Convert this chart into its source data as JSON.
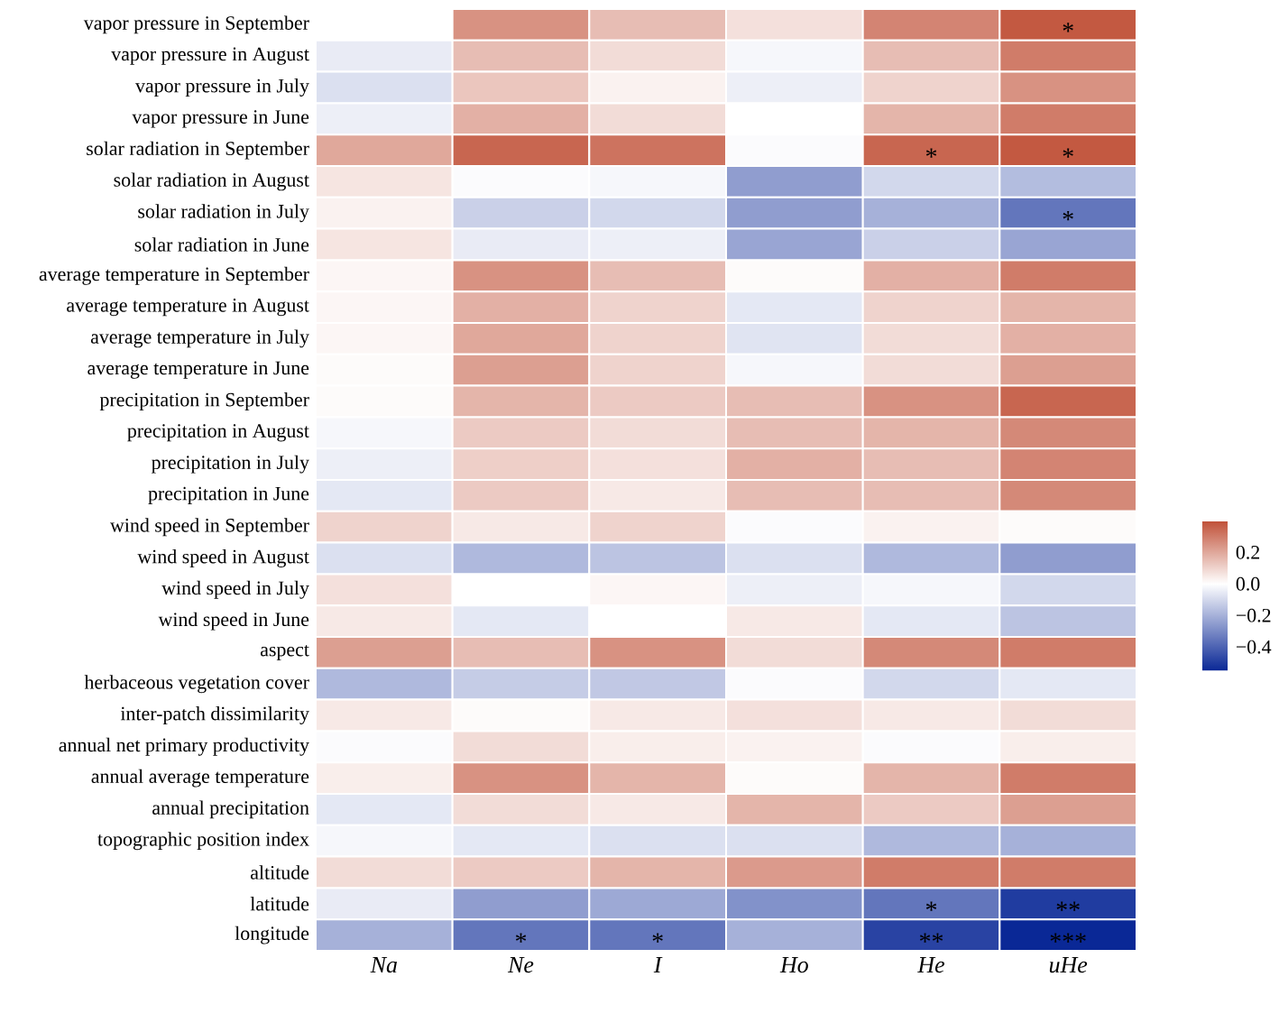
{
  "chart_data": {
    "type": "heatmap",
    "categories": [
      "Na",
      "Ne",
      "I",
      "Ho",
      "He",
      "uHe"
    ],
    "y_categories": [
      "vapor pressure in September",
      "vapor pressure in August",
      "vapor pressure in July",
      "vapor pressure in June",
      "solar radiation in September",
      "solar radiation in August",
      "solar radiation in July",
      "solar radiation in June",
      "average temperature in September",
      "average temperature in August",
      "average temperature in July",
      "average temperature in June",
      "precipitation in September",
      "precipitation in August",
      "precipitation in July",
      "precipitation in June",
      "wind speed in September",
      "wind speed in August",
      "wind speed in July",
      "wind speed in June",
      "aspect",
      "herbaceous vegetation cover",
      "inter-patch dissimilarity",
      "annual net primary productivity",
      "annual average temperature",
      "annual precipitation",
      "topographic position index",
      "altitude",
      "latitude",
      "longitude"
    ],
    "cells": [
      [
        0.0,
        0.25,
        0.15,
        0.07,
        0.28,
        0.38
      ],
      [
        -0.05,
        0.15,
        0.08,
        -0.02,
        0.15,
        0.3
      ],
      [
        -0.08,
        0.13,
        0.03,
        -0.04,
        0.1,
        0.25
      ],
      [
        -0.04,
        0.18,
        0.08,
        0.0,
        0.17,
        0.3
      ],
      [
        0.2,
        0.35,
        0.32,
        -0.01,
        0.35,
        0.38
      ],
      [
        0.06,
        -0.01,
        -0.02,
        -0.25,
        -0.1,
        -0.17
      ],
      [
        0.03,
        -0.12,
        -0.1,
        -0.25,
        -0.2,
        -0.35
      ],
      [
        0.06,
        -0.05,
        -0.04,
        -0.23,
        -0.12,
        -0.23
      ],
      [
        0.02,
        0.25,
        0.15,
        0.01,
        0.18,
        0.3
      ],
      [
        0.02,
        0.18,
        0.1,
        -0.06,
        0.1,
        0.17
      ],
      [
        0.02,
        0.2,
        0.1,
        -0.07,
        0.08,
        0.18
      ],
      [
        0.01,
        0.22,
        0.1,
        -0.02,
        0.08,
        0.22
      ],
      [
        0.01,
        0.17,
        0.12,
        0.15,
        0.25,
        0.35
      ],
      [
        -0.02,
        0.12,
        0.08,
        0.15,
        0.17,
        0.27
      ],
      [
        -0.04,
        0.11,
        0.07,
        0.18,
        0.15,
        0.28
      ],
      [
        -0.06,
        0.12,
        0.05,
        0.15,
        0.15,
        0.27
      ],
      [
        0.1,
        0.05,
        0.1,
        -0.01,
        0.03,
        0.01
      ],
      [
        -0.08,
        -0.18,
        -0.15,
        -0.08,
        -0.18,
        -0.25
      ],
      [
        0.07,
        0.0,
        0.02,
        -0.04,
        -0.02,
        -0.1
      ],
      [
        0.05,
        -0.06,
        0.0,
        0.05,
        -0.06,
        -0.15
      ],
      [
        0.22,
        0.15,
        0.25,
        0.08,
        0.27,
        0.3
      ],
      [
        -0.18,
        -0.13,
        -0.14,
        -0.01,
        -0.1,
        -0.06
      ],
      [
        0.05,
        0.01,
        0.05,
        0.07,
        0.05,
        0.08
      ],
      [
        -0.01,
        0.08,
        0.04,
        0.03,
        -0.01,
        0.04
      ],
      [
        0.04,
        0.25,
        0.17,
        0.01,
        0.17,
        0.3
      ],
      [
        -0.06,
        0.08,
        0.05,
        0.17,
        0.12,
        0.22
      ],
      [
        -0.02,
        -0.06,
        -0.08,
        -0.08,
        -0.18,
        -0.2
      ],
      [
        0.08,
        0.12,
        0.17,
        0.23,
        0.3,
        0.3
      ],
      [
        -0.05,
        -0.25,
        -0.22,
        -0.28,
        -0.35,
        -0.5
      ],
      [
        -0.2,
        -0.35,
        -0.35,
        -0.2,
        -0.48,
        -0.55
      ]
    ],
    "cell_labels": [
      [
        null,
        null,
        null,
        null,
        null,
        "*"
      ],
      [
        null,
        null,
        null,
        null,
        null,
        null
      ],
      [
        null,
        null,
        null,
        null,
        null,
        null
      ],
      [
        null,
        null,
        null,
        null,
        null,
        null
      ],
      [
        null,
        null,
        null,
        null,
        "*",
        "*"
      ],
      [
        null,
        null,
        null,
        null,
        null,
        null
      ],
      [
        null,
        null,
        null,
        null,
        null,
        "*"
      ],
      [
        null,
        null,
        null,
        null,
        null,
        null
      ],
      [
        null,
        null,
        null,
        null,
        null,
        null
      ],
      [
        null,
        null,
        null,
        null,
        null,
        null
      ],
      [
        null,
        null,
        null,
        null,
        null,
        null
      ],
      [
        null,
        null,
        null,
        null,
        null,
        null
      ],
      [
        null,
        null,
        null,
        null,
        null,
        null
      ],
      [
        null,
        null,
        null,
        null,
        null,
        null
      ],
      [
        null,
        null,
        null,
        null,
        null,
        null
      ],
      [
        null,
        null,
        null,
        null,
        null,
        null
      ],
      [
        null,
        null,
        null,
        null,
        null,
        null
      ],
      [
        null,
        null,
        null,
        null,
        null,
        null
      ],
      [
        null,
        null,
        null,
        null,
        null,
        null
      ],
      [
        null,
        null,
        null,
        null,
        null,
        null
      ],
      [
        null,
        null,
        null,
        null,
        null,
        null
      ],
      [
        null,
        null,
        null,
        null,
        null,
        null
      ],
      [
        null,
        null,
        null,
        null,
        null,
        null
      ],
      [
        null,
        null,
        null,
        null,
        null,
        null
      ],
      [
        null,
        null,
        null,
        null,
        null,
        null
      ],
      [
        null,
        null,
        null,
        null,
        null,
        null
      ],
      [
        null,
        null,
        null,
        null,
        null,
        null
      ],
      [
        null,
        null,
        null,
        null,
        null,
        null
      ],
      [
        null,
        null,
        null,
        null,
        "*",
        "**"
      ],
      [
        null,
        "*",
        "*",
        null,
        "**",
        "***"
      ]
    ],
    "clim": [
      -0.55,
      0.4
    ],
    "cticks": [
      0.2,
      {
        "value": 0.0,
        "label": "0.0"
      },
      {
        "value": -0.2,
        "label": "−0.2"
      },
      {
        "value": -0.4,
        "label": "−0.4"
      }
    ]
  }
}
